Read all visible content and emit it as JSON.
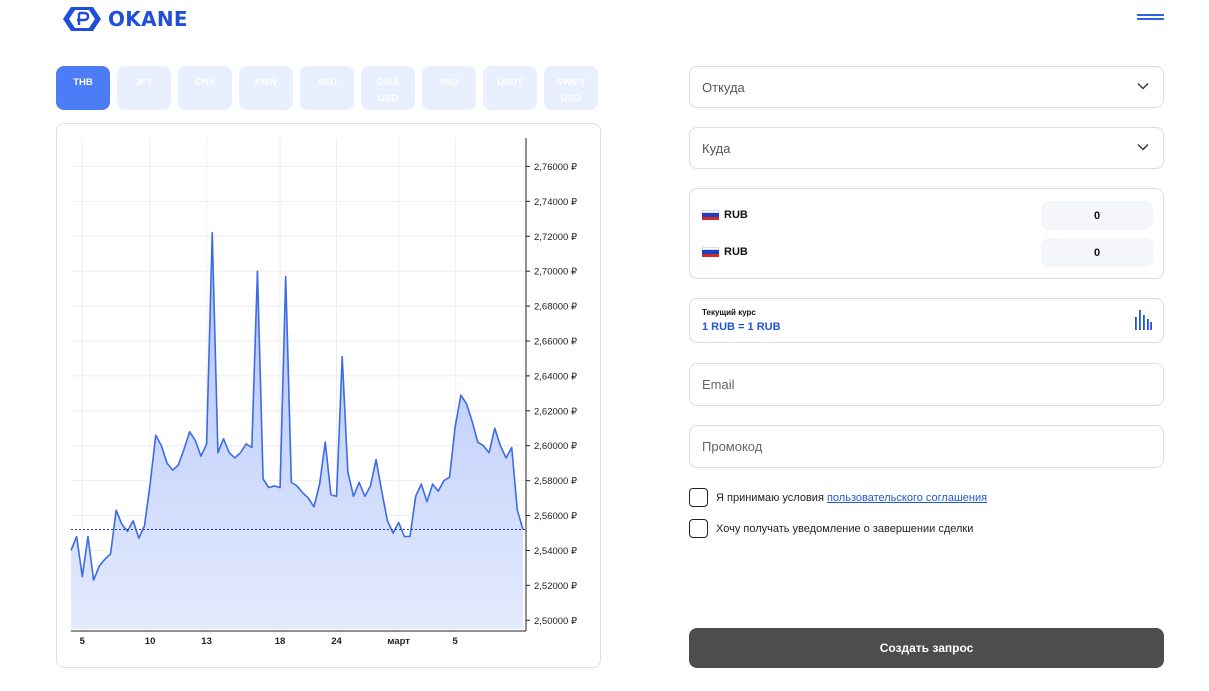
{
  "brand": {
    "name": "OKANE"
  },
  "tabs": [
    {
      "line1": "THB",
      "line2": "",
      "active": true
    },
    {
      "line1": "JPY",
      "line2": "",
      "active": false
    },
    {
      "line1": "CNY",
      "line2": "",
      "active": false
    },
    {
      "line1": "KRW",
      "line2": "",
      "active": false
    },
    {
      "line1": "AED",
      "line2": "",
      "active": false
    },
    {
      "line1": "CIBA",
      "line2": "USD",
      "active": false
    },
    {
      "line1": "VND",
      "line2": "",
      "active": false
    },
    {
      "line1": "USDT",
      "line2": "",
      "active": false
    },
    {
      "line1": "SWIFT",
      "line2": "USD",
      "active": false
    }
  ],
  "chart_data": {
    "type": "area",
    "title": "",
    "xlabel": "",
    "ylabel": "",
    "ylim": [
      2.495,
      2.774
    ],
    "y_ticks": [
      2.5,
      2.52,
      2.54,
      2.56,
      2.58,
      2.6,
      2.62,
      2.64,
      2.66,
      2.68,
      2.7,
      2.72,
      2.74,
      2.76
    ],
    "y_tick_labels": [
      "2,50000 ₽",
      "2,52000 ₽",
      "2,54000 ₽",
      "2,56000 ₽",
      "2,58000 ₽",
      "2,60000 ₽",
      "2,62000 ₽",
      "2,64000 ₽",
      "2,66000 ₽",
      "2,68000 ₽",
      "2,70000 ₽",
      "2,72000 ₽",
      "2,74000 ₽",
      "2,76000 ₽"
    ],
    "x_tick_labels": [
      "5",
      "10",
      "13",
      "18",
      "24",
      "март",
      "5"
    ],
    "x_tick_index": [
      2,
      14,
      24,
      37,
      47,
      58,
      68
    ],
    "current_value": 2.552,
    "grid": true,
    "series": [
      {
        "values": [
          2.54,
          2.548,
          2.525,
          2.548,
          2.523,
          2.531,
          2.535,
          2.538,
          2.563,
          2.555,
          2.551,
          2.557,
          2.547,
          2.554,
          2.578,
          2.606,
          2.6,
          2.59,
          2.586,
          2.589,
          2.598,
          2.608,
          2.603,
          2.594,
          2.601,
          2.722,
          2.596,
          2.604,
          2.596,
          2.593,
          2.596,
          2.601,
          2.599,
          2.7,
          2.581,
          2.576,
          2.577,
          2.576,
          2.697,
          2.579,
          2.577,
          2.573,
          2.57,
          2.565,
          2.578,
          2.602,
          2.572,
          2.571,
          2.651,
          2.585,
          2.571,
          2.579,
          2.571,
          2.577,
          2.592,
          2.574,
          2.557,
          2.55,
          2.556,
          2.548,
          2.548,
          2.571,
          2.578,
          2.568,
          2.578,
          2.574,
          2.58,
          2.582,
          2.611,
          2.629,
          2.624,
          2.614,
          2.602,
          2.6,
          2.596,
          2.61,
          2.6,
          2.593,
          2.599,
          2.563,
          2.552
        ]
      }
    ]
  },
  "form": {
    "from_placeholder": "Откуда",
    "to_placeholder": "Куда",
    "amounts": [
      {
        "currency": "RUB",
        "value": "0"
      },
      {
        "currency": "RUB",
        "value": "0"
      }
    ],
    "rate_label": "Текущий курс",
    "rate_value": "1 RUB = 1 RUB",
    "email_placeholder": "Email",
    "promo_placeholder": "Промокод",
    "agree_prefix": "Я принимаю условия",
    "agree_link": "пользовательского соглашения",
    "notify_label": "Хочу получать уведомление о завершении сделки",
    "submit_label": "Создать запрос"
  },
  "colors": {
    "accent": "#4d7cf7",
    "line": "#3c6be6",
    "brand": "#1f4fd9",
    "tab_inactive": "#e8efff",
    "submit": "#4d4d4d"
  }
}
